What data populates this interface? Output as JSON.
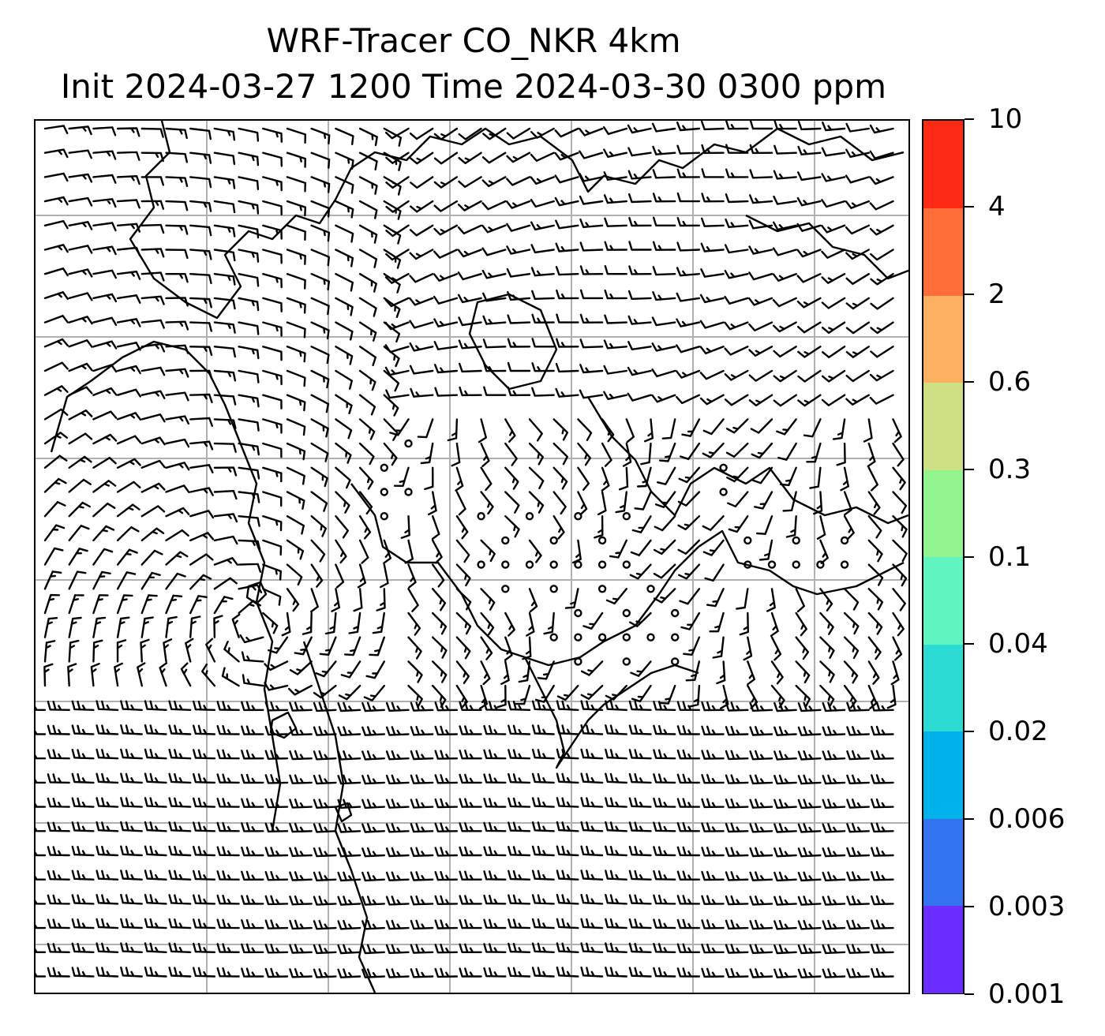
{
  "title": {
    "line1": "WRF-Tracer CO_NKR 4km",
    "line2": "Init 2024-03-27 1200 Time 2024-03-30 0300 ppm"
  },
  "map": {
    "gridlines": true,
    "gridline_color": "#b0b0b0",
    "coastline_color": "#000000",
    "barb_color": "#000000",
    "calm_wind_region": "central band of the domain shows calm-wind circles",
    "left_half_flow": "large cyclonic vortex",
    "lower_half_flow": "strong westerly flow"
  },
  "colorbar": {
    "colormap": "rainbow",
    "levels": [
      "0.001",
      "0.003",
      "0.006",
      "0.02",
      "0.04",
      "0.1",
      "0.3",
      "0.6",
      "2",
      "4",
      "10"
    ],
    "colors": [
      "#6a2cff",
      "#3373f0",
      "#00b2ea",
      "#2bdbd1",
      "#5ef5c0",
      "#92f48f",
      "#cde084",
      "#fdb060",
      "#ff6e39",
      "#ff2a14"
    ]
  }
}
